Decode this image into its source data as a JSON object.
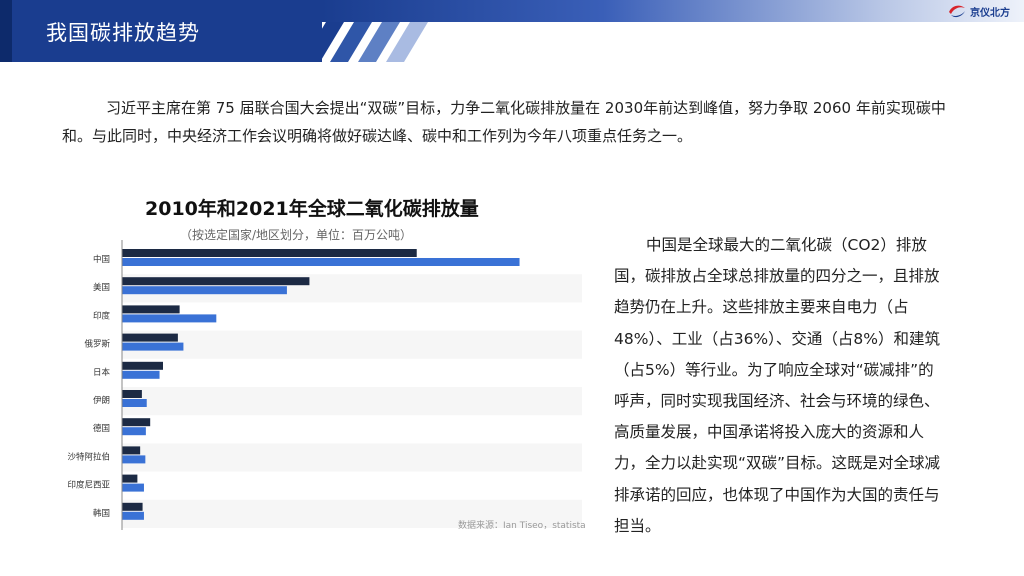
{
  "header": {
    "title": "我国碳排放趋势",
    "logo_text": "京仪北方",
    "brand_color": "#1a3d8f"
  },
  "intro": "习近平主席在第 75 届联合国大会提出“双碳”目标，力争二氧化碳排放量在 2030年前达到峰值，努力争取 2060 年前实现碳中和。与此同时，中央经济工作会议明确将做好碳达峰、碳中和工作列为今年八项重点任务之一。",
  "right_text": "中国是全球最大的二氧化碳（CO2）排放国，碳排放占全球总排放量的四分之一，且排放趋势仍在上升。这些排放主要来自电力（占48%）、工业（占36%）、交通（占8%）和建筑（占5%）等行业。为了响应全球对“碳减排”的呼声，同时实现我国经济、社会与环境的绿色、高质量发展，中国承诺将投入庞大的资源和人力，全力以赴实现“双碳”目标。这既是对全球减排承诺的回应，也体现了中国作为大国的责任与担当。",
  "chart_data": {
    "type": "bar",
    "orientation": "horizontal",
    "title": "2010年和2021年全球二氧化碳排放量",
    "subtitle": "（按选定国家/地区划分，单位：百万公吨）",
    "source": "数据来源：Ian Tiseo，statista",
    "categories": [
      "中国",
      "美国",
      "印度",
      "俄罗斯",
      "日本",
      "伊朗",
      "德国",
      "沙特阿拉伯",
      "印度尼西亚",
      "韩国"
    ],
    "series": [
      {
        "color": "#1c2a44",
        "values": [
          8500,
          5400,
          1650,
          1600,
          1170,
          560,
          800,
          510,
          430,
          580
        ]
      },
      {
        "color": "#3a72d6",
        "values": [
          11470,
          4750,
          2710,
          1760,
          1070,
          700,
          675,
          660,
          620,
          620
        ]
      }
    ],
    "xlim": [
      0,
      13000
    ],
    "grid": false,
    "legend": "none"
  }
}
